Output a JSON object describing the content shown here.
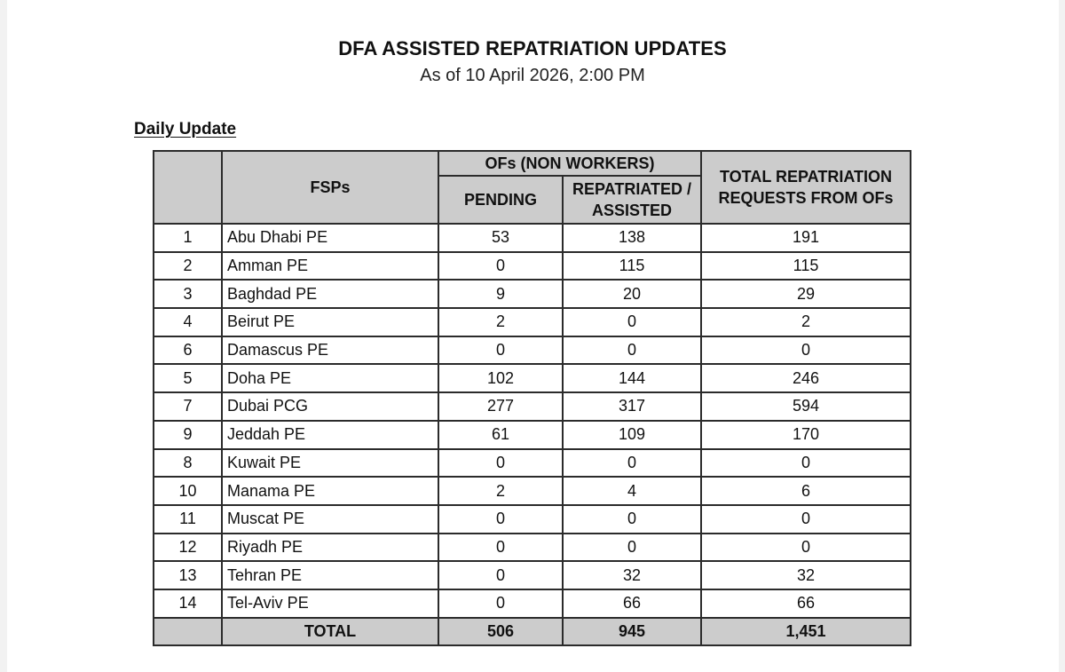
{
  "document": {
    "title": "DFA ASSISTED REPATRIATION UPDATES",
    "subtitle": "As of 10 April 2026, 2:00 PM",
    "section_heading": "Daily Update"
  },
  "table": {
    "headers": {
      "no": "",
      "fsps": "FSPs",
      "group": "OFs (NON WORKERS)",
      "pending": "PENDING",
      "repatriated": "REPATRIATED / ASSISTED",
      "total": "TOTAL REPATRIATION REQUESTS FROM OFs"
    },
    "rows": [
      {
        "no": "1",
        "fsp": "Abu Dhabi PE",
        "pending": "53",
        "repatriated": "138",
        "total": "191"
      },
      {
        "no": "2",
        "fsp": "Amman PE",
        "pending": "0",
        "repatriated": "115",
        "total": "115"
      },
      {
        "no": "3",
        "fsp": "Baghdad PE",
        "pending": "9",
        "repatriated": "20",
        "total": "29"
      },
      {
        "no": "4",
        "fsp": "Beirut PE",
        "pending": "2",
        "repatriated": "0",
        "total": "2"
      },
      {
        "no": "6",
        "fsp": "Damascus PE",
        "pending": "0",
        "repatriated": "0",
        "total": "0"
      },
      {
        "no": "5",
        "fsp": "Doha PE",
        "pending": "102",
        "repatriated": "144",
        "total": "246"
      },
      {
        "no": "7",
        "fsp": "Dubai PCG",
        "pending": "277",
        "repatriated": "317",
        "total": "594"
      },
      {
        "no": "9",
        "fsp": "Jeddah PE",
        "pending": "61",
        "repatriated": "109",
        "total": "170"
      },
      {
        "no": "8",
        "fsp": "Kuwait PE",
        "pending": "0",
        "repatriated": "0",
        "total": "0"
      },
      {
        "no": "10",
        "fsp": "Manama PE",
        "pending": "2",
        "repatriated": "4",
        "total": "6"
      },
      {
        "no": "11",
        "fsp": "Muscat PE",
        "pending": "0",
        "repatriated": "0",
        "total": "0"
      },
      {
        "no": "12",
        "fsp": "Riyadh PE",
        "pending": "0",
        "repatriated": "0",
        "total": "0"
      },
      {
        "no": "13",
        "fsp": "Tehran PE",
        "pending": "0",
        "repatriated": "32",
        "total": "32"
      },
      {
        "no": "14",
        "fsp": "Tel-Aviv PE",
        "pending": "0",
        "repatriated": "66",
        "total": "66"
      }
    ],
    "total_row": {
      "label": "TOTAL",
      "pending": "506",
      "repatriated": "945",
      "total": "1,451"
    }
  },
  "colors": {
    "header_bg": "#cccccc",
    "border": "#2b2b2b",
    "page_bg": "#ffffff"
  }
}
